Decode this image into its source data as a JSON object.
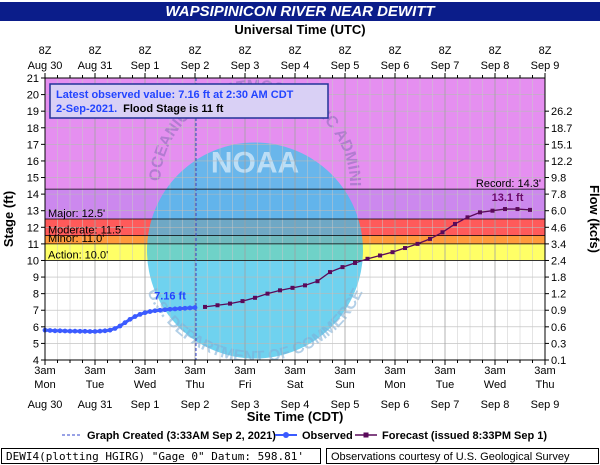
{
  "title": "WAPSIPINICON RIVER NEAR DEWITT",
  "footer": {
    "left": "DEWI4(plotting HGIRG) \"Gage 0\" Datum: 598.81'",
    "right": "Observations courtesy of U.S. Geological Survey"
  },
  "watermark": {
    "agency_top": "NATIONAL OCEANIC AND ATMOSPHERIC ADMINISTRATION",
    "agency_bottom": "U.S. DEPARTMENT OF COMMERCE",
    "logo_text": "NOAA"
  },
  "colors": {
    "title_bg": "#0b1d8a",
    "record_zone": "#e58ff0",
    "major_zone": "#cc88ee",
    "moderate_zone": "#ff5a5a",
    "minor_zone": "#ff9a3c",
    "action_zone": "#ffff66",
    "plot_bg": "#ffffff",
    "observed": "#3b5bff",
    "forecast": "#5a0a5a",
    "annotation_text": "#2244ff",
    "forecast_label": "#6a0a6a",
    "noaa_circle": "#3fc3ea"
  },
  "chart_data": {
    "type": "line",
    "title": "WAPSIPINICON RIVER NEAR DEWITT",
    "top_axis_title": "Universal Time (UTC)",
    "bottom_axis_title": "Site Time (CDT)",
    "ylabel_left": "Stage (ft)",
    "ylabel_right": "Flow (kcfs)",
    "ylim": [
      4,
      21
    ],
    "yticks": [
      4,
      5,
      6,
      7,
      8,
      9,
      10,
      11,
      12,
      13,
      14,
      15,
      16,
      17,
      18,
      19,
      20,
      21
    ],
    "xlim_days": [
      0,
      10
    ],
    "x_unit": "days since Aug 30 3am CDT",
    "top_ticks": [
      {
        "pos": 0.5,
        "line1": "8Z",
        "line2": "Aug 30"
      },
      {
        "pos": 1.5,
        "line1": "8Z",
        "line2": "Aug 31"
      },
      {
        "pos": 2.5,
        "line1": "8Z",
        "line2": "Sep 1"
      },
      {
        "pos": 3.5,
        "line1": "8Z",
        "line2": "Sep 2"
      },
      {
        "pos": 4.5,
        "line1": "8Z",
        "line2": "Sep 3"
      },
      {
        "pos": 5.5,
        "line1": "8Z",
        "line2": "Sep 4"
      },
      {
        "pos": 6.5,
        "line1": "8Z",
        "line2": "Sep 5"
      },
      {
        "pos": 7.5,
        "line1": "8Z",
        "line2": "Sep 6"
      },
      {
        "pos": 8.5,
        "line1": "8Z",
        "line2": "Sep 7"
      },
      {
        "pos": 9.5,
        "line1": "8Z",
        "line2": "Sep 8"
      },
      {
        "pos": 10.5,
        "line1": "8Z",
        "line2": "Sep 9"
      }
    ],
    "bottom_ticks": [
      {
        "pos": 0,
        "line1": "3am",
        "line2": "Mon",
        "line3": "Aug 30"
      },
      {
        "pos": 1,
        "line1": "3am",
        "line2": "Tue",
        "line3": "Aug 31"
      },
      {
        "pos": 2,
        "line1": "3am",
        "line2": "Wed",
        "line3": "Sep 1"
      },
      {
        "pos": 3,
        "line1": "3am",
        "line2": "Thu",
        "line3": "Sep 2"
      },
      {
        "pos": 4,
        "line1": "3am",
        "line2": "Fri",
        "line3": "Sep 3"
      },
      {
        "pos": 5,
        "line1": "3am",
        "line2": "Sat",
        "line3": "Sep 4"
      },
      {
        "pos": 6,
        "line1": "3am",
        "line2": "Sun",
        "line3": "Sep 5"
      },
      {
        "pos": 7,
        "line1": "3am",
        "line2": "Mon",
        "line3": "Sep 6"
      },
      {
        "pos": 8,
        "line1": "3am",
        "line2": "Tue",
        "line3": "Sep 7"
      },
      {
        "pos": 9,
        "line1": "3am",
        "line2": "Wed",
        "line3": "Sep 8"
      },
      {
        "pos": 10,
        "line1": "3am",
        "line2": "Thu",
        "line3": "Sep 9"
      }
    ],
    "flow_ticks": [
      {
        "stage": 4,
        "label": "0.1"
      },
      {
        "stage": 5,
        "label": "0.3"
      },
      {
        "stage": 6,
        "label": "0.6"
      },
      {
        "stage": 7,
        "label": "0.9"
      },
      {
        "stage": 8,
        "label": "1.2"
      },
      {
        "stage": 9,
        "label": "1.8"
      },
      {
        "stage": 10,
        "label": "2.4"
      },
      {
        "stage": 11,
        "label": "3.4"
      },
      {
        "stage": 12,
        "label": "4.6"
      },
      {
        "stage": 13,
        "label": "6.0"
      },
      {
        "stage": 14,
        "label": "7.8"
      },
      {
        "stage": 15,
        "label": "9.8"
      },
      {
        "stage": 16,
        "label": "12.2"
      },
      {
        "stage": 17,
        "label": "15.1"
      },
      {
        "stage": 18,
        "label": "18.7"
      },
      {
        "stage": 19,
        "label": "26.2"
      }
    ],
    "flood_categories": [
      {
        "name": "Record",
        "label": "Record: 14.3'",
        "stage": 14.3
      },
      {
        "name": "Major",
        "label": "Major: 12.5'",
        "stage": 12.5
      },
      {
        "name": "Moderate",
        "label": "Moderate: 11.5'",
        "stage": 11.5
      },
      {
        "name": "Minor",
        "label": "Minor: 11.0'",
        "stage": 11.0
      },
      {
        "name": "Action",
        "label": "Action: 10.0'",
        "stage": 10.0
      }
    ],
    "graph_created_day": 3.02,
    "info_box": {
      "line1": "Latest observed value: 7.16 ft at 2:30 AM CDT",
      "line2a": "2-Sep-2021.",
      "line2b": "Flood Stage is 11 ft"
    },
    "observed_label": "7.16 ft",
    "forecast_peak_label": "13.1 ft",
    "series": [
      {
        "name": "Observed",
        "x": [
          0.0,
          0.1,
          0.2,
          0.3,
          0.4,
          0.5,
          0.6,
          0.7,
          0.8,
          0.9,
          1.0,
          1.1,
          1.2,
          1.3,
          1.4,
          1.5,
          1.6,
          1.7,
          1.8,
          1.9,
          2.0,
          2.1,
          2.2,
          2.3,
          2.4,
          2.5,
          2.6,
          2.7,
          2.8,
          2.9,
          3.0
        ],
        "values": [
          5.8,
          5.78,
          5.76,
          5.76,
          5.75,
          5.74,
          5.74,
          5.73,
          5.73,
          5.72,
          5.72,
          5.74,
          5.76,
          5.8,
          5.9,
          6.05,
          6.25,
          6.45,
          6.62,
          6.75,
          6.85,
          6.92,
          6.97,
          7.0,
          7.03,
          7.06,
          7.08,
          7.1,
          7.12,
          7.14,
          7.16
        ]
      },
      {
        "name": "Forecast",
        "x": [
          3.2,
          3.45,
          3.7,
          3.95,
          4.2,
          4.45,
          4.7,
          4.95,
          5.2,
          5.45,
          5.7,
          5.95,
          6.2,
          6.45,
          6.7,
          6.95,
          7.2,
          7.45,
          7.7,
          7.95,
          8.2,
          8.45,
          8.7,
          8.95,
          9.2,
          9.45,
          9.7
        ],
        "values": [
          7.2,
          7.3,
          7.4,
          7.55,
          7.75,
          8.0,
          8.2,
          8.35,
          8.5,
          8.75,
          9.3,
          9.6,
          9.85,
          10.1,
          10.3,
          10.5,
          10.75,
          11.0,
          11.3,
          11.7,
          12.2,
          12.6,
          12.9,
          13.0,
          13.1,
          13.1,
          13.05
        ]
      }
    ],
    "legend": {
      "graph_created": "Graph Created (3:33AM Sep 2, 2021)",
      "observed": "Observed",
      "forecast": "Forecast (issued 8:33PM Sep 1)"
    }
  }
}
